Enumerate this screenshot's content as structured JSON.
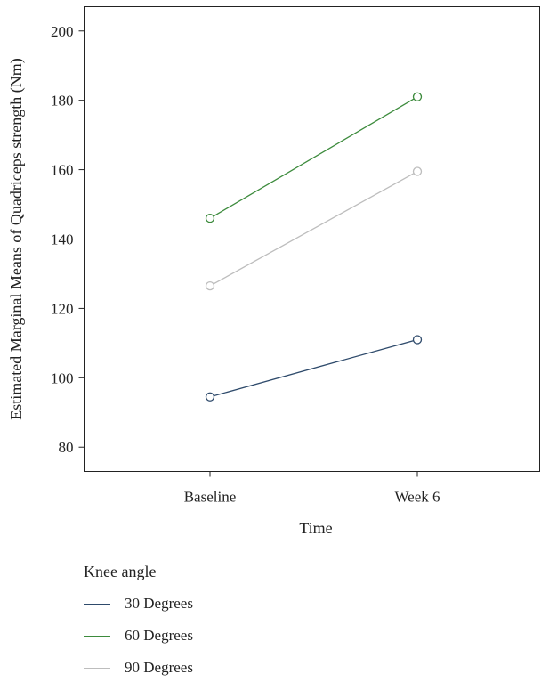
{
  "chart_data": {
    "type": "line",
    "categories": [
      "Baseline",
      "Week 6"
    ],
    "series": [
      {
        "name": "30 Degrees",
        "values": [
          94.5,
          111.0
        ],
        "color": "#2e4a6b"
      },
      {
        "name": "60 Degrees",
        "values": [
          146.0,
          181.0
        ],
        "color": "#3d8b3d"
      },
      {
        "name": "90 Degrees",
        "values": [
          126.5,
          159.5
        ],
        "color": "#bdbdbd"
      }
    ],
    "title": "",
    "xlabel": "Time",
    "ylabel": "Estimated Marginal Means of Quadriceps strength (Nm)",
    "ylim": [
      73,
      207
    ],
    "yticks": [
      80,
      100,
      120,
      140,
      160,
      180,
      200
    ],
    "markers": "open-circle",
    "legend_title": "Knee angle",
    "legend_position": "bottom-left"
  }
}
